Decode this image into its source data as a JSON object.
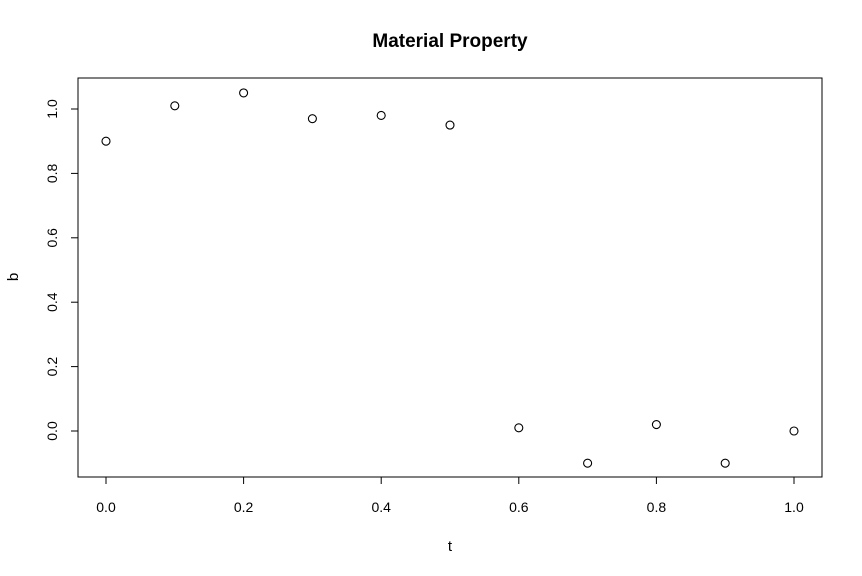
{
  "chart_data": {
    "type": "scatter",
    "title": "Material Property",
    "xlabel": "t",
    "ylabel": "b",
    "xlim": [
      0.0,
      1.0
    ],
    "ylim": [
      -0.1,
      1.05
    ],
    "x_ticks": [
      0.0,
      0.2,
      0.4,
      0.6,
      0.8,
      1.0
    ],
    "x_tick_labels": [
      "0.0",
      "0.2",
      "0.4",
      "0.6",
      "0.8",
      "1.0"
    ],
    "y_ticks": [
      0.0,
      0.2,
      0.4,
      0.6,
      0.8,
      1.0
    ],
    "y_tick_labels": [
      "0.0",
      "0.2",
      "0.4",
      "0.6",
      "0.8",
      "1.0"
    ],
    "grid": false,
    "legend": "none",
    "marker": "open-circle",
    "colors": {
      "points": "#000000",
      "axes": "#000000",
      "background": "#ffffff"
    },
    "series": [
      {
        "x": [
          0.0,
          0.1,
          0.2,
          0.3,
          0.4,
          0.5,
          0.6,
          0.7,
          0.8,
          0.9,
          1.0
        ],
        "y": [
          0.9,
          1.01,
          1.05,
          0.97,
          0.98,
          0.95,
          0.01,
          -0.1,
          0.02,
          -0.1,
          0.0
        ]
      }
    ]
  }
}
